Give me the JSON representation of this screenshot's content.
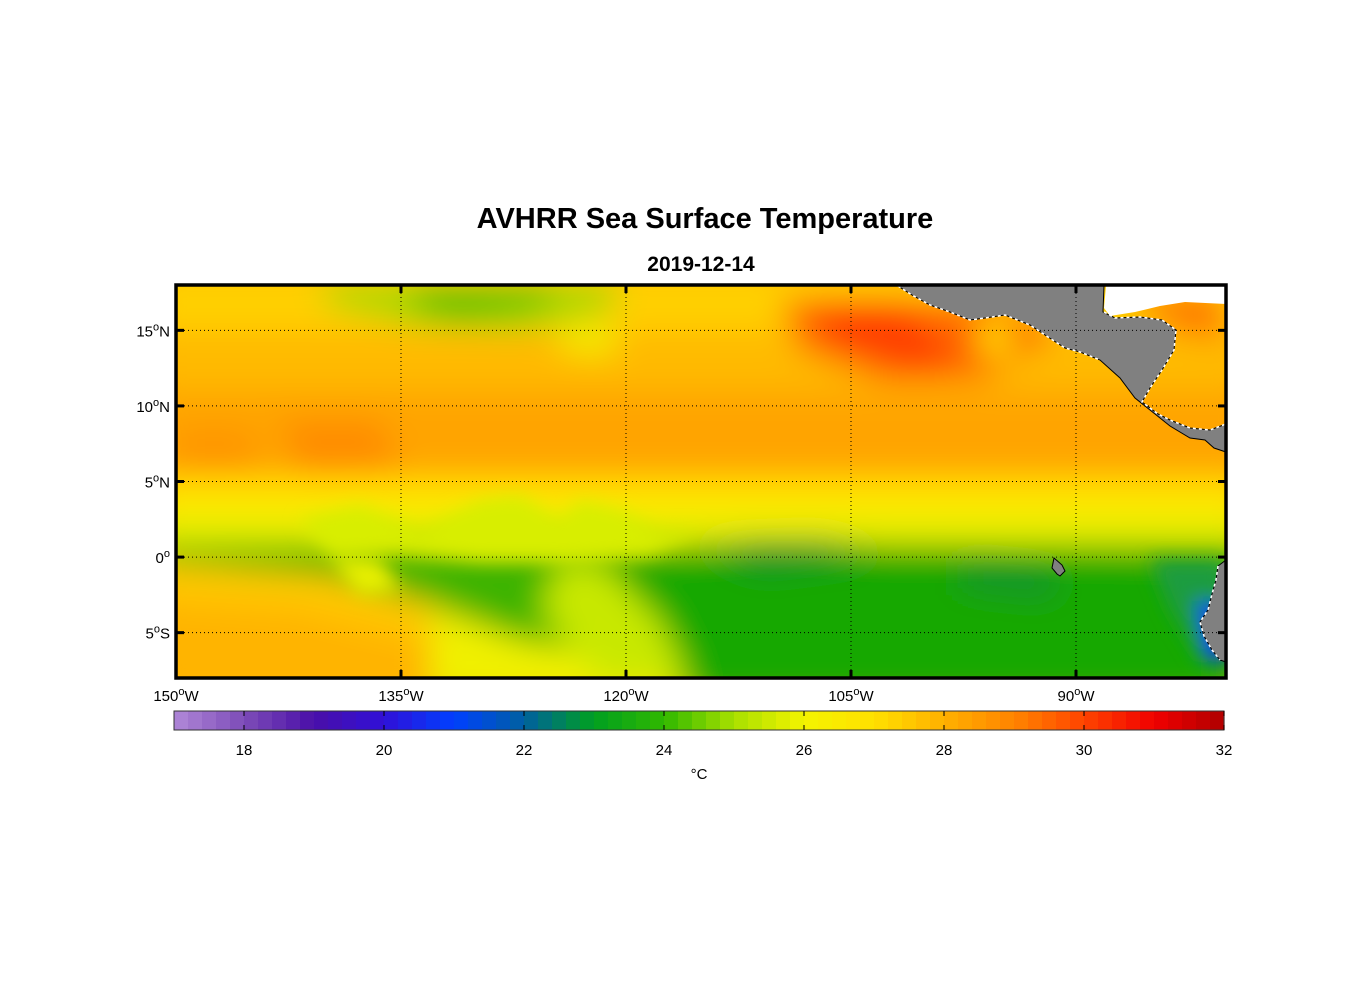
{
  "header": {
    "title": "AVHRR Sea Surface Temperature",
    "subtitle": "2019-12-14"
  },
  "map": {
    "region": {
      "lon_min": -150,
      "lon_max": -80,
      "lat_min": -8,
      "lat_max": 18
    },
    "land_color": "#808080",
    "frame_color": "#000000",
    "lat_ticks": [
      {
        "value": 15,
        "num": "15",
        "deg": "o",
        "hemi": "N"
      },
      {
        "value": 10,
        "num": "10",
        "deg": "o",
        "hemi": "N"
      },
      {
        "value": 5,
        "num": "5",
        "deg": "o",
        "hemi": "N"
      },
      {
        "value": 0,
        "num": "0",
        "deg": "o",
        "hemi": ""
      },
      {
        "value": -5,
        "num": "5",
        "deg": "o",
        "hemi": "S"
      }
    ],
    "lon_ticks": [
      {
        "value": -150,
        "num": "150",
        "deg": "o",
        "hemi": "W"
      },
      {
        "value": -135,
        "num": "135",
        "deg": "o",
        "hemi": "W"
      },
      {
        "value": -120,
        "num": "120",
        "deg": "o",
        "hemi": "W"
      },
      {
        "value": -105,
        "num": "105",
        "deg": "o",
        "hemi": "W"
      },
      {
        "value": -90,
        "num": "90",
        "deg": "o",
        "hemi": "W"
      }
    ]
  },
  "colorbar": {
    "min": 17,
    "max": 32,
    "ticks": [
      "18",
      "20",
      "22",
      "24",
      "26",
      "28",
      "30",
      "32"
    ],
    "tick_values": [
      18,
      20,
      22,
      24,
      26,
      28,
      30,
      32
    ],
    "unit": "°C",
    "stops": [
      {
        "t": 17,
        "color": "#b088d8"
      },
      {
        "t": 18,
        "color": "#7d4cb8"
      },
      {
        "t": 19,
        "color": "#4a0fa8"
      },
      {
        "t": 20,
        "color": "#3010d8"
      },
      {
        "t": 21,
        "color": "#0040ff"
      },
      {
        "t": 22,
        "color": "#0060a0"
      },
      {
        "t": 23,
        "color": "#00a020"
      },
      {
        "t": 24,
        "color": "#30b800"
      },
      {
        "t": 25,
        "color": "#a8e000"
      },
      {
        "t": 26,
        "color": "#f4f400"
      },
      {
        "t": 27,
        "color": "#ffe000"
      },
      {
        "t": 28,
        "color": "#ffb000"
      },
      {
        "t": 29,
        "color": "#ff8400"
      },
      {
        "t": 30,
        "color": "#ff4400"
      },
      {
        "t": 31,
        "color": "#f00000"
      },
      {
        "t": 32,
        "color": "#b00000"
      }
    ]
  }
}
